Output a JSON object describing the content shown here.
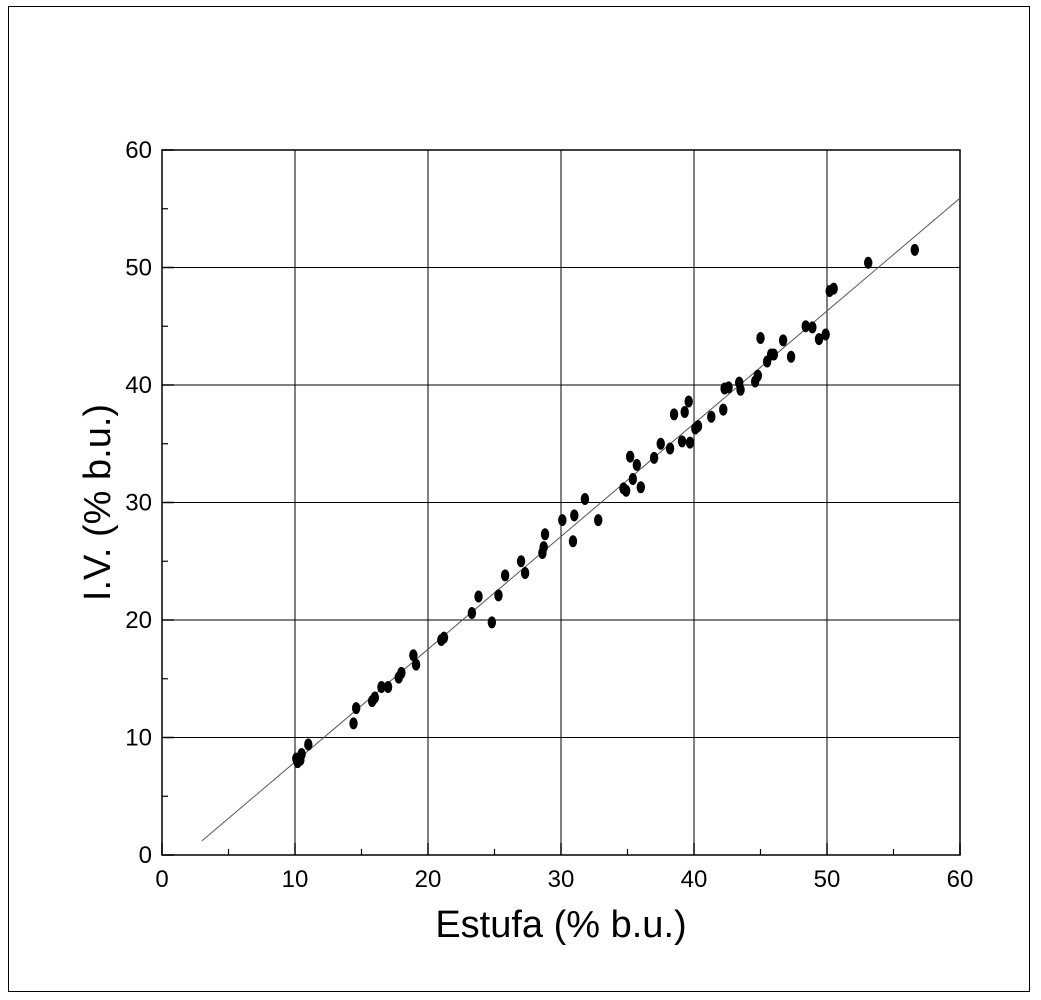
{
  "chart_data": {
    "type": "scatter",
    "xlabel": "Estufa (% b.u.)",
    "ylabel": "I.V. (% b.u.)",
    "xlim": [
      0,
      60
    ],
    "ylim": [
      0,
      60
    ],
    "xticks": [
      "0",
      "10",
      "20",
      "30",
      "40",
      "50",
      "60"
    ],
    "yticks": [
      "0",
      "10",
      "20",
      "30",
      "40",
      "50",
      "60"
    ],
    "grid": true,
    "colors": {
      "points": "#000000",
      "fit_line": "#555555"
    },
    "points": [
      [
        10.1,
        8.2
      ],
      [
        10.2,
        7.9
      ],
      [
        10.4,
        8.1
      ],
      [
        10.5,
        8.6
      ],
      [
        11.0,
        9.4
      ],
      [
        14.4,
        11.2
      ],
      [
        14.6,
        12.5
      ],
      [
        15.8,
        13.1
      ],
      [
        16.0,
        13.4
      ],
      [
        16.5,
        14.3
      ],
      [
        17.0,
        14.3
      ],
      [
        17.8,
        15.1
      ],
      [
        18.0,
        15.5
      ],
      [
        18.9,
        17.0
      ],
      [
        19.1,
        16.2
      ],
      [
        21.0,
        18.3
      ],
      [
        21.2,
        18.5
      ],
      [
        23.3,
        20.6
      ],
      [
        23.8,
        22.0
      ],
      [
        24.8,
        19.8
      ],
      [
        25.3,
        22.1
      ],
      [
        25.8,
        23.8
      ],
      [
        27.0,
        25.0
      ],
      [
        27.3,
        24.0
      ],
      [
        28.6,
        25.7
      ],
      [
        28.7,
        26.2
      ],
      [
        28.8,
        27.3
      ],
      [
        30.1,
        28.5
      ],
      [
        30.9,
        26.7
      ],
      [
        31.0,
        28.9
      ],
      [
        31.8,
        30.3
      ],
      [
        32.8,
        28.5
      ],
      [
        34.7,
        31.2
      ],
      [
        34.9,
        31.0
      ],
      [
        35.2,
        33.9
      ],
      [
        35.4,
        32.0
      ],
      [
        35.7,
        33.2
      ],
      [
        36.0,
        31.3
      ],
      [
        37.0,
        33.8
      ],
      [
        37.5,
        35.0
      ],
      [
        38.2,
        34.6
      ],
      [
        38.5,
        37.5
      ],
      [
        39.1,
        35.2
      ],
      [
        39.3,
        37.7
      ],
      [
        39.6,
        38.6
      ],
      [
        39.7,
        35.1
      ],
      [
        40.1,
        36.3
      ],
      [
        40.3,
        36.5
      ],
      [
        41.3,
        37.3
      ],
      [
        42.2,
        37.9
      ],
      [
        42.3,
        39.7
      ],
      [
        42.6,
        39.8
      ],
      [
        43.4,
        40.2
      ],
      [
        43.5,
        39.6
      ],
      [
        44.6,
        40.3
      ],
      [
        44.8,
        40.8
      ],
      [
        45.0,
        44.0
      ],
      [
        45.5,
        42.0
      ],
      [
        45.8,
        42.6
      ],
      [
        46.0,
        42.6
      ],
      [
        46.7,
        43.8
      ],
      [
        47.3,
        42.4
      ],
      [
        48.4,
        45.0
      ],
      [
        48.9,
        44.9
      ],
      [
        49.4,
        43.9
      ],
      [
        49.9,
        44.3
      ],
      [
        50.2,
        48.0
      ],
      [
        50.5,
        48.2
      ],
      [
        53.1,
        50.4
      ],
      [
        56.6,
        51.5
      ]
    ],
    "fit_line": {
      "x": [
        3,
        60
      ],
      "y": [
        1.2,
        55.9
      ]
    }
  }
}
